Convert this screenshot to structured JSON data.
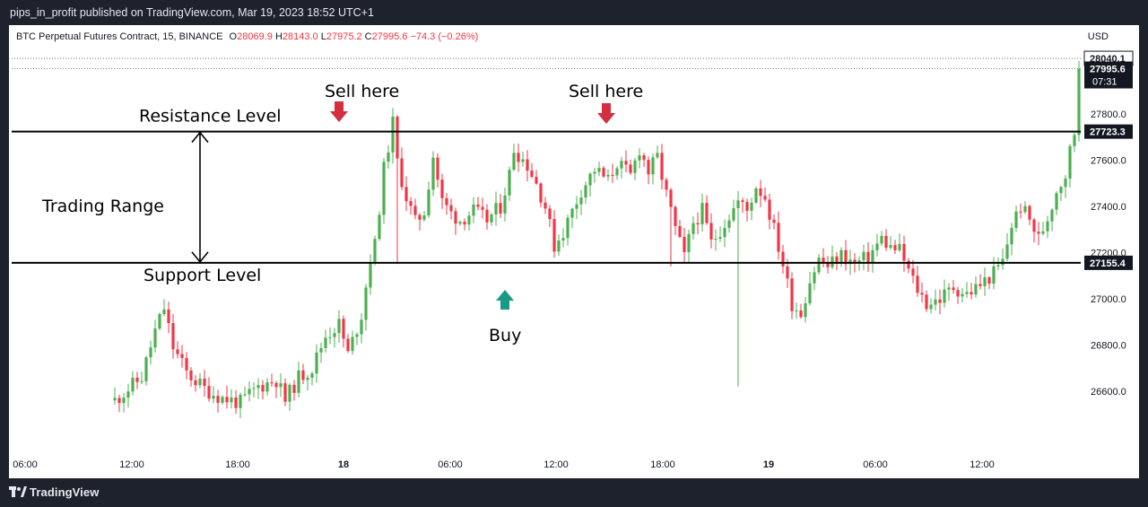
{
  "header": {
    "publisher_line": "pips_in_profit published on TradingView.com, Mar 19, 2023 18:52 UTC+1"
  },
  "symbol_info": {
    "name": "BTC Perpetual Futures Contract, 15, BINANCE",
    "open_label": "O",
    "open": "28069.9",
    "high_label": "H",
    "high": "28143.0",
    "low_label": "L",
    "low": "27975.2",
    "close_label": "C",
    "close": "27995.6",
    "change": "−74.3 (−0.26%)"
  },
  "currency": "USD",
  "annotations": {
    "sell_1": "Sell here",
    "sell_2": "Sell here",
    "buy": "Buy",
    "resistance": "Resistance Level",
    "support": "Support Level",
    "range": "Trading Range"
  },
  "price_axis": {
    "ticks": [
      "27800.0",
      "27600.0",
      "27400.0",
      "27200.0",
      "27000.0",
      "26800.0",
      "26600.0"
    ],
    "high_badge": "28040.1",
    "last_price_badge": "27995.6",
    "countdown": "07:31",
    "resistance_badge": "27723.3",
    "support_badge": "27155.4"
  },
  "time_axis": {
    "ticks": [
      "06:00",
      "12:00",
      "18:00",
      "18",
      "06:00",
      "12:00",
      "18:00",
      "19",
      "06:00",
      "12:00"
    ],
    "bold_ticks": [
      "18",
      "19"
    ]
  },
  "footer": {
    "brand": "TradingView"
  },
  "colors": {
    "up": "#4caf50",
    "down": "#f23645",
    "sell_arrow": "#d32f3e",
    "buy_arrow": "#1a9a86",
    "chrome_bg": "#1e222d",
    "badge_dark": "#131722"
  },
  "chart_data": {
    "type": "candlestick",
    "title": "BTC Perpetual Futures Contract, 15, BINANCE",
    "ylabel": "USD",
    "ylim": [
      26530,
      28260
    ],
    "x_tick_labels": [
      "06:00",
      "12:00",
      "18:00",
      "18",
      "06:00",
      "12:00",
      "18:00",
      "19",
      "06:00",
      "12:00"
    ],
    "horizontal_levels": [
      {
        "name": "Resistance Level",
        "value": 27723.3
      },
      {
        "name": "Support Level",
        "value": 27155.4
      }
    ],
    "last_price": 27995.6,
    "series_trend_close": [
      [
        0,
        26560
      ],
      [
        6,
        26660
      ],
      [
        9,
        26860
      ],
      [
        11,
        26960
      ],
      [
        13,
        26790
      ],
      [
        16,
        26680
      ],
      [
        20,
        26610
      ],
      [
        24,
        26570
      ],
      [
        28,
        26550
      ],
      [
        32,
        26620
      ],
      [
        36,
        26650
      ],
      [
        38,
        26560
      ],
      [
        41,
        26660
      ],
      [
        44,
        26700
      ],
      [
        47,
        26840
      ],
      [
        50,
        26890
      ],
      [
        52,
        26760
      ],
      [
        55,
        26930
      ],
      [
        57,
        27180
      ],
      [
        58,
        27230
      ],
      [
        60,
        27560
      ],
      [
        62,
        27760
      ],
      [
        63,
        27590
      ],
      [
        65,
        27440
      ],
      [
        67,
        27330
      ],
      [
        69,
        27380
      ],
      [
        70,
        27500
      ],
      [
        71,
        27620
      ],
      [
        73,
        27420
      ],
      [
        75,
        27370
      ],
      [
        77,
        27340
      ],
      [
        80,
        27380
      ],
      [
        83,
        27340
      ],
      [
        86,
        27400
      ],
      [
        88,
        27540
      ],
      [
        89,
        27650
      ],
      [
        92,
        27580
      ],
      [
        94,
        27500
      ],
      [
        96,
        27400
      ],
      [
        98,
        27230
      ],
      [
        100,
        27290
      ],
      [
        102,
        27380
      ],
      [
        104,
        27470
      ],
      [
        107,
        27560
      ],
      [
        110,
        27510
      ],
      [
        112,
        27590
      ],
      [
        115,
        27530
      ],
      [
        117,
        27650
      ],
      [
        119,
        27550
      ],
      [
        121,
        27610
      ],
      [
        123,
        27450
      ],
      [
        125,
        27300
      ],
      [
        127,
        27180
      ],
      [
        129,
        27330
      ],
      [
        131,
        27380
      ],
      [
        133,
        27240
      ],
      [
        136,
        27330
      ],
      [
        139,
        27420
      ],
      [
        141,
        27380
      ],
      [
        143,
        27490
      ],
      [
        145,
        27440
      ],
      [
        147,
        27300
      ],
      [
        149,
        27150
      ],
      [
        151,
        26980
      ],
      [
        153,
        26940
      ],
      [
        155,
        27080
      ],
      [
        157,
        27170
      ],
      [
        159,
        27140
      ],
      [
        162,
        27190
      ],
      [
        165,
        27150
      ],
      [
        168,
        27180
      ],
      [
        171,
        27260
      ],
      [
        173,
        27220
      ],
      [
        175,
        27210
      ],
      [
        177,
        27120
      ],
      [
        179,
        27040
      ],
      [
        181,
        26980
      ],
      [
        184,
        27000
      ],
      [
        187,
        27050
      ],
      [
        190,
        27020
      ],
      [
        193,
        27060
      ],
      [
        196,
        27110
      ],
      [
        198,
        27160
      ],
      [
        200,
        27320
      ],
      [
        202,
        27400
      ],
      [
        204,
        27340
      ],
      [
        206,
        27260
      ],
      [
        208,
        27350
      ],
      [
        210,
        27470
      ],
      [
        212,
        27540
      ],
      [
        213,
        27640
      ],
      [
        214,
        27720
      ],
      [
        215,
        27995.6
      ]
    ]
  }
}
